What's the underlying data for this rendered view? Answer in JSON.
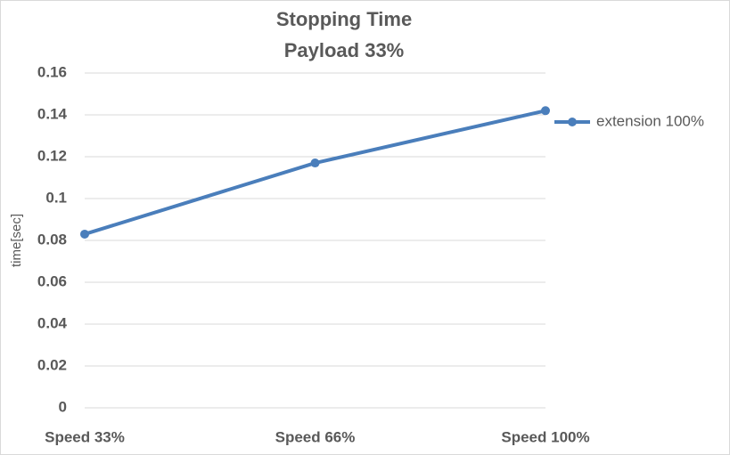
{
  "chart_data": {
    "type": "line",
    "title": "Stopping Time",
    "subtitle": "Payload 33%",
    "y_label": "time[sec]",
    "categories": [
      "Speed 33%",
      "Speed 66%",
      "Speed 100%"
    ],
    "series": [
      {
        "name": "extension 100%",
        "color": "#4a7ebb",
        "values": [
          0.083,
          0.117,
          0.142
        ]
      }
    ],
    "ylim": [
      0,
      0.16
    ],
    "yticks": [
      0,
      0.02,
      0.04,
      0.06,
      0.08,
      0.1,
      0.12,
      0.14,
      0.16
    ],
    "grid": true,
    "legend": "right"
  }
}
